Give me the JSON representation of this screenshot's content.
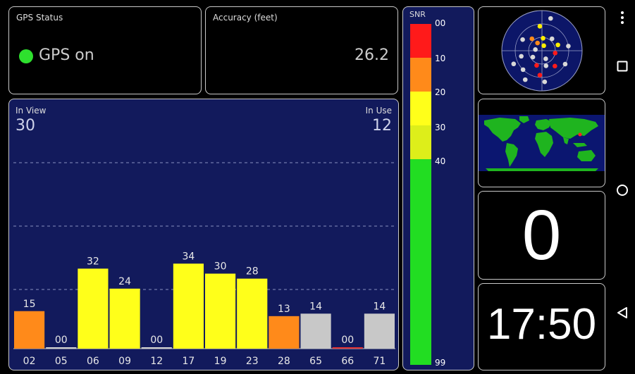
{
  "gps_status": {
    "title": "GPS Status",
    "text": "GPS on",
    "dot_color": "#2ee02e"
  },
  "accuracy": {
    "title": "Accuracy (feet)",
    "value": "26.2"
  },
  "satellites": {
    "in_view_label": "In View",
    "in_view_value": "30",
    "in_use_label": "In Use",
    "in_use_value": "12"
  },
  "chart_data": {
    "type": "bar",
    "categories": [
      "02",
      "05",
      "06",
      "09",
      "12",
      "17",
      "19",
      "23",
      "28",
      "65",
      "66",
      "71"
    ],
    "values": [
      15,
      0,
      32,
      24,
      0,
      34,
      30,
      28,
      13,
      14,
      0,
      14
    ],
    "labels": [
      "15",
      "00",
      "32",
      "24",
      "00",
      "34",
      "30",
      "28",
      "13",
      "14",
      "00",
      "14"
    ],
    "colors": [
      "#ff8a1a",
      "#d0d0d0",
      "#ffff1a",
      "#ffff1a",
      "#d0d0d0",
      "#ffff1a",
      "#ffff1a",
      "#ffff1a",
      "#ff8a1a",
      "#c8c8c8",
      "#e53333",
      "#c8c8c8"
    ],
    "ylim": [
      0,
      99
    ],
    "grid": true
  },
  "snr_scale": {
    "title": "SNR",
    "ticks": [
      "00",
      "10",
      "20",
      "30",
      "40",
      "99"
    ],
    "colors": [
      "#ff1a1a",
      "#ff8a1a",
      "#ffff1a",
      "#ddee1a",
      "#22dd22"
    ]
  },
  "sky": {
    "satellites": [
      {
        "az": 15,
        "el": 15,
        "color": "#d8d8d8"
      },
      {
        "az": 40,
        "el": 55,
        "color": "#d8d8d8"
      },
      {
        "az": 355,
        "el": 35,
        "color": "#ffee00"
      },
      {
        "az": 320,
        "el": 55,
        "color": "#ff8a1a"
      },
      {
        "az": 300,
        "el": 40,
        "color": "#d8d8d8"
      },
      {
        "az": 5,
        "el": 62,
        "color": "#ffee00"
      },
      {
        "az": 330,
        "el": 70,
        "color": "#ff8a1a"
      },
      {
        "az": 20,
        "el": 78,
        "color": "#ffee00"
      },
      {
        "az": 70,
        "el": 52,
        "color": "#ffee00"
      },
      {
        "az": 80,
        "el": 30,
        "color": "#d8d8d8"
      },
      {
        "az": 100,
        "el": 60,
        "color": "#ff1a1a"
      },
      {
        "az": 255,
        "el": 42,
        "color": "#d8d8d8"
      },
      {
        "az": 245,
        "el": 20,
        "color": "#d8d8d8"
      },
      {
        "az": 225,
        "el": 30,
        "color": "#d8d8d8"
      },
      {
        "az": 200,
        "el": 55,
        "color": "#ff1a1a"
      },
      {
        "az": 185,
        "el": 35,
        "color": "#ff1a1a"
      },
      {
        "az": 175,
        "el": 20,
        "color": "#d8d8d8"
      },
      {
        "az": 210,
        "el": 15,
        "color": "#d8d8d8"
      },
      {
        "az": 155,
        "el": 70,
        "color": "#d8d8d8"
      },
      {
        "az": 140,
        "el": 45,
        "color": "#ff1a1a"
      },
      {
        "az": 165,
        "el": 55,
        "color": "#d8d8d8"
      },
      {
        "az": 120,
        "el": 30,
        "color": "#d8d8d8"
      },
      {
        "az": 235,
        "el": 65,
        "color": "#d8d8d8"
      },
      {
        "az": 280,
        "el": 75,
        "color": "#d8d8d8"
      }
    ]
  },
  "count_panel": {
    "value": "0"
  },
  "time_panel": {
    "value": "17:50"
  }
}
